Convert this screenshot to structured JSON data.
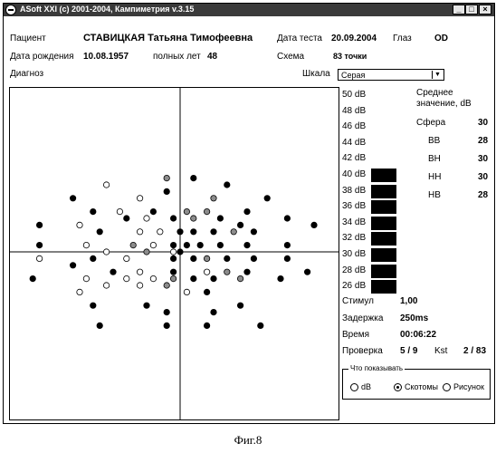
{
  "window": {
    "title": "ASoft XXI (c) 2001-2004, Кампиметрия v.3.15",
    "buttons": {
      "minimize": "_",
      "maximize": "□",
      "close": "×"
    }
  },
  "patient": {
    "label": "Пациент",
    "name": "СТАВИЦКАЯ Татьяна Тимофеевна",
    "dob_label": "Дата рождения",
    "dob": "10.08.1957",
    "age_label": "полных лет",
    "age": "48"
  },
  "test": {
    "date_label": "Дата теста",
    "date": "20.09.2004",
    "eye_label": "Глаз",
    "eye": "OD",
    "scheme_label": "Схема",
    "scheme": "83 точки",
    "diagnosis_label": "Диагноз"
  },
  "scale": {
    "label": "Шкала",
    "selected": "Серая"
  },
  "legend": {
    "items": [
      {
        "label": "50 dB",
        "filled": false
      },
      {
        "label": "48 dB",
        "filled": false
      },
      {
        "label": "46 dB",
        "filled": false
      },
      {
        "label": "44 dB",
        "filled": false
      },
      {
        "label": "42 dB",
        "filled": false
      },
      {
        "label": "40 dB",
        "filled": true
      },
      {
        "label": "38 dB",
        "filled": true
      },
      {
        "label": "36 dB",
        "filled": true
      },
      {
        "label": "34 dB",
        "filled": true
      },
      {
        "label": "32 dB",
        "filled": true
      },
      {
        "label": "30 dB",
        "filled": true
      },
      {
        "label": "28 dB",
        "filled": true
      },
      {
        "label": "26 dB",
        "filled": true
      }
    ]
  },
  "stats": {
    "mean_title_1": "Среднее",
    "mean_title_2": "значение, dB",
    "sphere_label": "Сфера",
    "sphere": "30",
    "bb_label": "ВВ",
    "bb": "28",
    "bh_label": "ВН",
    "bh": "30",
    "hh_label": "НН",
    "hh": "30",
    "hb_label": "НВ",
    "hb": "28"
  },
  "params": {
    "stimulus_label": "Стимул",
    "stimulus": "1,00",
    "delay_label": "Задержка",
    "delay": "250ms",
    "time_label": "Время",
    "time": "00:06:22",
    "check_label": "Проверка",
    "check": "5 / 9",
    "kst_label": "Kst",
    "kst": "2 / 83"
  },
  "display_options": {
    "title": "Что показывать",
    "options": [
      {
        "label": "dB",
        "selected": false
      },
      {
        "label": "Скотомы",
        "selected": true
      },
      {
        "label": "Рисунок",
        "selected": false
      }
    ]
  },
  "caption": "Фиг.8",
  "visual_field": {
    "colors": {
      "black": "#000000",
      "gray": "#8c8c8c",
      "open": "#ffffff"
    },
    "points": [
      {
        "x": -11,
        "y": 10,
        "c": "open"
      },
      {
        "x": -2,
        "y": 11,
        "c": "gray"
      },
      {
        "x": 2,
        "y": 11,
        "c": "black"
      },
      {
        "x": 7,
        "y": 10,
        "c": "black"
      },
      {
        "x": -16,
        "y": 8,
        "c": "black"
      },
      {
        "x": -6,
        "y": 8,
        "c": "open"
      },
      {
        "x": -2,
        "y": 9,
        "c": "black"
      },
      {
        "x": 5,
        "y": 8,
        "c": "gray"
      },
      {
        "x": 13,
        "y": 8,
        "c": "black"
      },
      {
        "x": -13,
        "y": 6,
        "c": "black"
      },
      {
        "x": -9,
        "y": 6,
        "c": "open"
      },
      {
        "x": -4,
        "y": 6,
        "c": "black"
      },
      {
        "x": 1,
        "y": 6,
        "c": "gray"
      },
      {
        "x": 4,
        "y": 6,
        "c": "gray"
      },
      {
        "x": 10,
        "y": 6,
        "c": "black"
      },
      {
        "x": 16,
        "y": 5,
        "c": "black"
      },
      {
        "x": -21,
        "y": 4,
        "c": "black"
      },
      {
        "x": -15,
        "y": 4,
        "c": "open"
      },
      {
        "x": -8,
        "y": 5,
        "c": "black"
      },
      {
        "x": -5,
        "y": 5,
        "c": "open"
      },
      {
        "x": -1,
        "y": 5,
        "c": "black"
      },
      {
        "x": 2,
        "y": 5,
        "c": "gray"
      },
      {
        "x": 6,
        "y": 5,
        "c": "black"
      },
      {
        "x": 9,
        "y": 4,
        "c": "black"
      },
      {
        "x": 20,
        "y": 4,
        "c": "black"
      },
      {
        "x": -12,
        "y": 3,
        "c": "black"
      },
      {
        "x": -6,
        "y": 3,
        "c": "open"
      },
      {
        "x": -3,
        "y": 3,
        "c": "open"
      },
      {
        "x": 0,
        "y": 3,
        "c": "black"
      },
      {
        "x": 2,
        "y": 3,
        "c": "black"
      },
      {
        "x": 5,
        "y": 3,
        "c": "black"
      },
      {
        "x": 8,
        "y": 3,
        "c": "gray"
      },
      {
        "x": 11,
        "y": 3,
        "c": "black"
      },
      {
        "x": -21,
        "y": 1,
        "c": "black"
      },
      {
        "x": -14,
        "y": 1,
        "c": "open"
      },
      {
        "x": -7,
        "y": 1,
        "c": "gray"
      },
      {
        "x": -4,
        "y": 1,
        "c": "open"
      },
      {
        "x": -1,
        "y": 1,
        "c": "black"
      },
      {
        "x": 1,
        "y": 1,
        "c": "black"
      },
      {
        "x": 3,
        "y": 1,
        "c": "black"
      },
      {
        "x": 6,
        "y": 1,
        "c": "black"
      },
      {
        "x": 10,
        "y": 1,
        "c": "black"
      },
      {
        "x": 16,
        "y": 1,
        "c": "black"
      },
      {
        "x": -11,
        "y": 0,
        "c": "open"
      },
      {
        "x": -5,
        "y": 0,
        "c": "gray"
      },
      {
        "x": -1,
        "y": 0,
        "c": "open"
      },
      {
        "x": 0,
        "y": 0,
        "c": "black"
      },
      {
        "x": -21,
        "y": -1,
        "c": "open"
      },
      {
        "x": -13,
        "y": -1,
        "c": "black"
      },
      {
        "x": -8,
        "y": -1,
        "c": "open"
      },
      {
        "x": -1,
        "y": -1,
        "c": "black"
      },
      {
        "x": 2,
        "y": -1,
        "c": "black"
      },
      {
        "x": 4,
        "y": -1,
        "c": "gray"
      },
      {
        "x": 7,
        "y": -1,
        "c": "black"
      },
      {
        "x": 11,
        "y": -1,
        "c": "black"
      },
      {
        "x": 16,
        "y": -1,
        "c": "black"
      },
      {
        "x": -16,
        "y": -2,
        "c": "black"
      },
      {
        "x": -10,
        "y": -3,
        "c": "black"
      },
      {
        "x": -6,
        "y": -3,
        "c": "open"
      },
      {
        "x": -1,
        "y": -3,
        "c": "black"
      },
      {
        "x": 4,
        "y": -3,
        "c": "open"
      },
      {
        "x": 7,
        "y": -3,
        "c": "gray"
      },
      {
        "x": 10,
        "y": -3,
        "c": "black"
      },
      {
        "x": 19,
        "y": -3,
        "c": "black"
      },
      {
        "x": -22,
        "y": -4,
        "c": "black"
      },
      {
        "x": -14,
        "y": -4,
        "c": "open"
      },
      {
        "x": -8,
        "y": -4,
        "c": "open"
      },
      {
        "x": -4,
        "y": -4,
        "c": "open"
      },
      {
        "x": -1,
        "y": -4,
        "c": "gray"
      },
      {
        "x": 2,
        "y": -4,
        "c": "black"
      },
      {
        "x": 5,
        "y": -4,
        "c": "black"
      },
      {
        "x": 9,
        "y": -4,
        "c": "gray"
      },
      {
        "x": 15,
        "y": -4,
        "c": "black"
      },
      {
        "x": -15,
        "y": -6,
        "c": "open"
      },
      {
        "x": -11,
        "y": -5,
        "c": "open"
      },
      {
        "x": -6,
        "y": -5,
        "c": "open"
      },
      {
        "x": -2,
        "y": -5,
        "c": "gray"
      },
      {
        "x": 1,
        "y": -6,
        "c": "open"
      },
      {
        "x": 4,
        "y": -6,
        "c": "black"
      },
      {
        "x": -13,
        "y": -8,
        "c": "black"
      },
      {
        "x": -5,
        "y": -8,
        "c": "black"
      },
      {
        "x": -2,
        "y": -9,
        "c": "black"
      },
      {
        "x": 5,
        "y": -9,
        "c": "black"
      },
      {
        "x": 9,
        "y": -8,
        "c": "black"
      },
      {
        "x": -12,
        "y": -11,
        "c": "black"
      },
      {
        "x": -2,
        "y": -11,
        "c": "black"
      },
      {
        "x": 4,
        "y": -11,
        "c": "black"
      },
      {
        "x": 12,
        "y": -11,
        "c": "black"
      }
    ]
  }
}
